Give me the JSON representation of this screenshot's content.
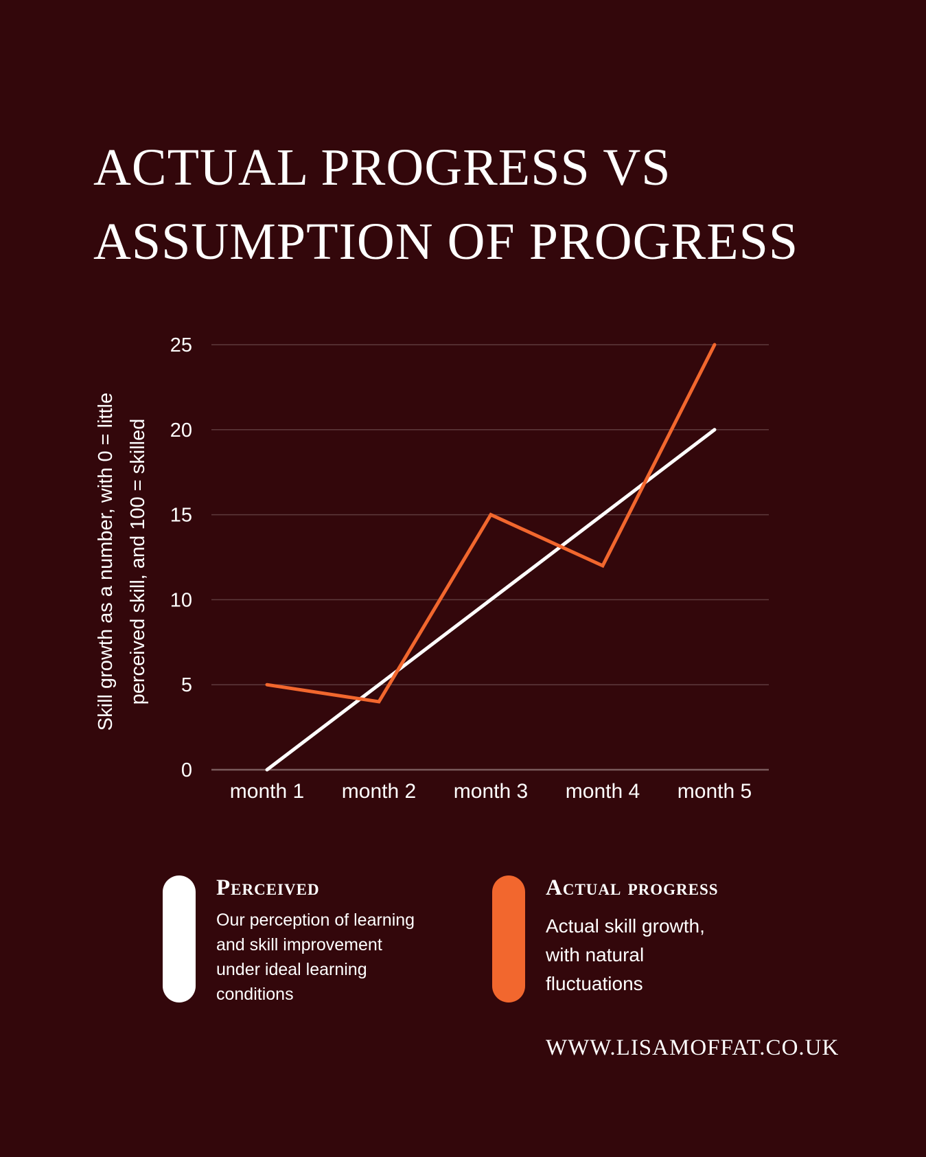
{
  "title_lines": [
    "ACTUAL PROGRESS VS",
    "ASSUMPTION OF PROGRESS"
  ],
  "colors": {
    "background": "#33070b",
    "perceived": "#ffffff",
    "actual": "#f2672e",
    "grid": "#5e3a3d",
    "text": "#ffffff"
  },
  "chart_data": {
    "type": "line",
    "categories": [
      "month 1",
      "month 2",
      "month 3",
      "month 4",
      "month 5"
    ],
    "series": [
      {
        "name": "Perceived",
        "values": [
          0,
          5,
          10,
          15,
          20
        ]
      },
      {
        "name": "Actual progress",
        "values": [
          5,
          4,
          15,
          12,
          25
        ]
      }
    ],
    "ylabel_lines": [
      "Skill growth as a number, with 0 = little",
      "perceived skill, and 100 = skilled"
    ],
    "ylim": [
      0,
      25
    ],
    "yticks": [
      "0",
      "5",
      "10",
      "15",
      "20",
      "25"
    ],
    "grid": true
  },
  "legend": {
    "perceived": {
      "title": "Perceived",
      "desc_lines": [
        "Our perception of learning",
        "and skill improvement",
        "under ideal learning",
        "conditions"
      ]
    },
    "actual": {
      "title": "Actual progress",
      "desc_lines": [
        "Actual skill growth,",
        "with natural",
        "fluctuations"
      ]
    }
  },
  "website": "WWW.LISAMOFFAT.CO.UK"
}
